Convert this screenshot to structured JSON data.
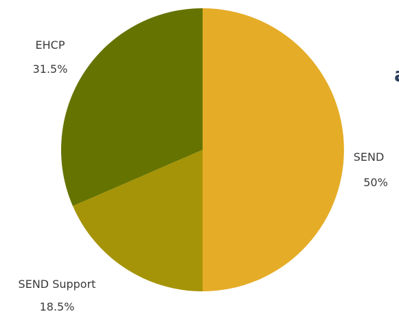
{
  "chart_data": {
    "type": "pie",
    "slices": [
      {
        "label": "SEND",
        "percent_label": "50%",
        "value": 50,
        "color": "#E5AC27"
      },
      {
        "label": "SEND Support",
        "percent_label": "18.5%",
        "value": 18.5,
        "color": "#A59408"
      },
      {
        "label": "EHCP",
        "percent_label": "31.5%",
        "value": 31.5,
        "color": "#657300"
      }
    ]
  },
  "clipped_text_fragment": "a"
}
